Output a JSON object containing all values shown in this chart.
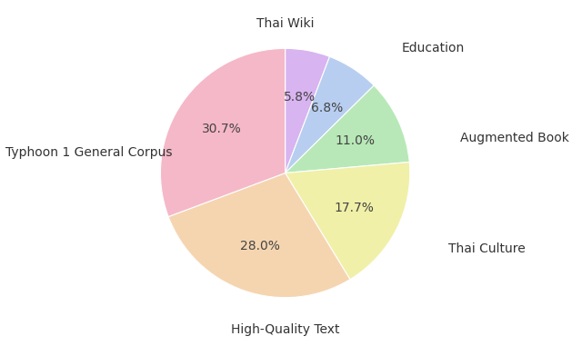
{
  "labels": [
    "Thai Wiki",
    "Education",
    "Augmented Book",
    "Thai Culture",
    "High-Quality Text",
    "Typhoon 1 General Corpus"
  ],
  "values": [
    5.8,
    6.8,
    11.0,
    17.7,
    28.0,
    30.7
  ],
  "colors": [
    "#d8b4f0",
    "#b8cef0",
    "#b8e8b8",
    "#f0f0a8",
    "#f5d5b0",
    "#f5b8c8"
  ],
  "pct_labels": [
    "5.8%",
    "6.8%",
    "11.0%",
    "17.7%",
    "28.0%",
    "30.7%"
  ],
  "background_color": "#ffffff",
  "font_size": 10,
  "pct_distance": 0.72,
  "startangle": 90
}
